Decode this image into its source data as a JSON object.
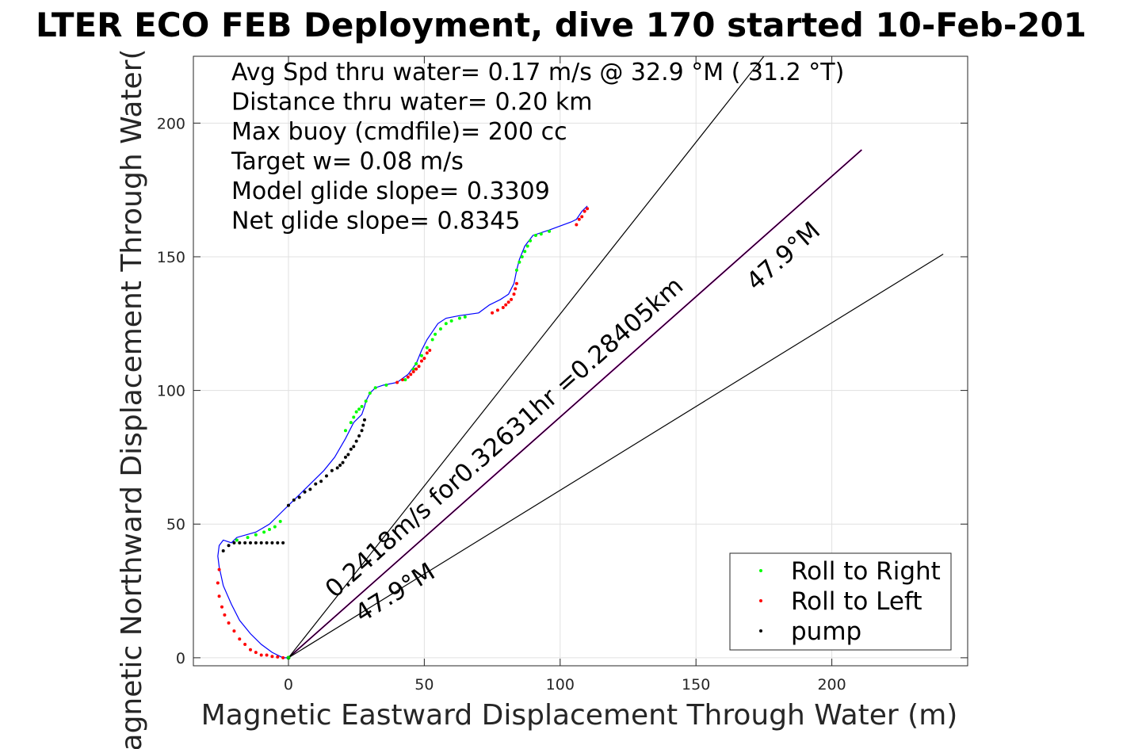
{
  "chart_data": {
    "type": "scatter",
    "title": "LTER ECO FEB Deployment, dive 170 started 10-Feb-201",
    "xlabel": "Magnetic Eastward Displacement Through Water (m)",
    "ylabel": "Magnetic Northward Displacement Through Water(",
    "xlim": [
      -35,
      250
    ],
    "ylim": [
      -3,
      225
    ],
    "xticks": [
      0,
      50,
      100,
      150,
      200
    ],
    "yticks": [
      0,
      50,
      100,
      150,
      200
    ],
    "grid": true,
    "legend_position": "bottom-right",
    "stats_text": [
      "Avg Spd thru water=  0.17 m/s @  32.9 °M ( 31.2 °T)",
      "Distance thru water=  0.20 km",
      "Max buoy (cmdfile)= 200 cc",
      "Target w= 0.08 m/s",
      "Model glide slope= 0.3309",
      "Net glide slope= 0.8345"
    ],
    "annotations": [
      {
        "text": "0.2418m/s for0.32631hr =0.28405km",
        "x": 17,
        "y": 22,
        "angle_deg": 41.6
      },
      {
        "text": "47.9°M",
        "x": 172,
        "y": 137,
        "angle_deg": 41.6
      },
      {
        "text": "47.9°M",
        "x": 27,
        "y": 13,
        "angle_deg": 32
      }
    ],
    "reference_lines": [
      {
        "name": "heading",
        "color": "#cc00cc",
        "x": [
          0,
          211
        ],
        "y": [
          0,
          190
        ]
      },
      {
        "name": "bound-upper",
        "color": "#000000",
        "x": [
          0,
          175
        ],
        "y": [
          0,
          225
        ]
      },
      {
        "name": "bound-mid",
        "color": "#000000",
        "x": [
          0,
          211
        ],
        "y": [
          0,
          190
        ]
      },
      {
        "name": "bound-lower",
        "color": "#000000",
        "x": [
          0,
          241
        ],
        "y": [
          0,
          151
        ]
      }
    ],
    "track": {
      "color": "#0000ff",
      "x": [
        0,
        -2,
        -6,
        -10,
        -14,
        -18,
        -21,
        -24,
        -25.5,
        -26,
        -25.5,
        -24,
        -21,
        -19,
        -12,
        -7,
        -3,
        0,
        3,
        6,
        9,
        13,
        17,
        21,
        24,
        27,
        28,
        28.5,
        30,
        32,
        35,
        40,
        44,
        47,
        49,
        51,
        53,
        55,
        58,
        63,
        70,
        74,
        78,
        81,
        83,
        84,
        85,
        87,
        90,
        96,
        104,
        106,
        108,
        110
      ],
      "y": [
        0,
        0,
        2,
        5,
        9,
        14,
        20,
        27,
        34,
        38,
        42,
        44,
        43,
        45,
        47,
        50,
        54,
        57,
        60,
        63,
        66,
        70,
        75,
        82,
        88,
        91,
        94,
        96,
        99,
        101,
        102,
        103,
        106,
        110,
        115,
        119,
        122,
        125,
        127,
        128,
        129,
        132,
        134,
        136,
        140,
        145,
        149,
        154,
        158,
        160,
        163,
        164,
        167,
        169
      ]
    },
    "series": [
      {
        "name": "Roll to Right",
        "color": "#00ff00",
        "x": [
          -19,
          -15,
          -12,
          -9,
          -7,
          -5,
          -3,
          21,
          23,
          24,
          25,
          26,
          27,
          28.5,
          30,
          32,
          36,
          43,
          46,
          47,
          49,
          51,
          53,
          54,
          56,
          58,
          60,
          63,
          65,
          84,
          85,
          86,
          87,
          88,
          89,
          91,
          93,
          96
        ],
        "y": [
          44,
          45,
          46,
          47,
          48,
          49,
          51,
          85,
          88,
          90,
          92,
          93,
          94,
          96,
          99,
          101,
          102,
          104,
          108,
          110,
          113,
          116,
          119,
          121,
          123,
          125,
          126,
          127,
          127.5,
          145,
          148,
          150,
          152,
          154,
          156,
          158,
          158.5,
          159.5
        ]
      },
      {
        "name": "Roll to Left",
        "color": "#ff0000",
        "x": [
          -25.5,
          -26,
          -25.5,
          -24.5,
          -23.5,
          -22,
          -20,
          -18,
          -16,
          -14,
          -12,
          -10,
          -8,
          -6,
          -4,
          -2,
          40,
          42,
          44,
          45,
          46,
          47,
          48,
          49,
          50,
          51,
          52,
          75,
          77,
          79,
          80,
          81,
          82,
          83,
          83.5,
          84,
          106,
          107,
          108,
          109,
          110
        ],
        "y": [
          33,
          28,
          23,
          19,
          16,
          13,
          10,
          7,
          5,
          3,
          2,
          1,
          1,
          0.5,
          0.3,
          0,
          103,
          104,
          105,
          106,
          107,
          108,
          109,
          111,
          112,
          114,
          115,
          129,
          130,
          131,
          132,
          133,
          134,
          136,
          138,
          140,
          162,
          164,
          165,
          167,
          168
        ]
      },
      {
        "name": "pump",
        "color": "#000000",
        "x": [
          -24,
          -22,
          -20,
          -18,
          -16,
          -14,
          -12,
          -10,
          -8,
          -6,
          -4,
          -2,
          0,
          2,
          4,
          6,
          8,
          10,
          12,
          14,
          16,
          18,
          19,
          20,
          21,
          22,
          23,
          24,
          25,
          26,
          27,
          27.5,
          28
        ],
        "y": [
          40,
          42,
          43,
          43,
          43,
          43,
          43,
          43,
          43,
          43,
          43,
          43,
          57,
          59,
          60,
          62,
          63,
          65,
          66,
          68,
          70,
          71,
          72,
          73,
          75,
          76,
          78,
          79,
          81,
          83,
          85,
          87,
          89
        ]
      }
    ]
  }
}
